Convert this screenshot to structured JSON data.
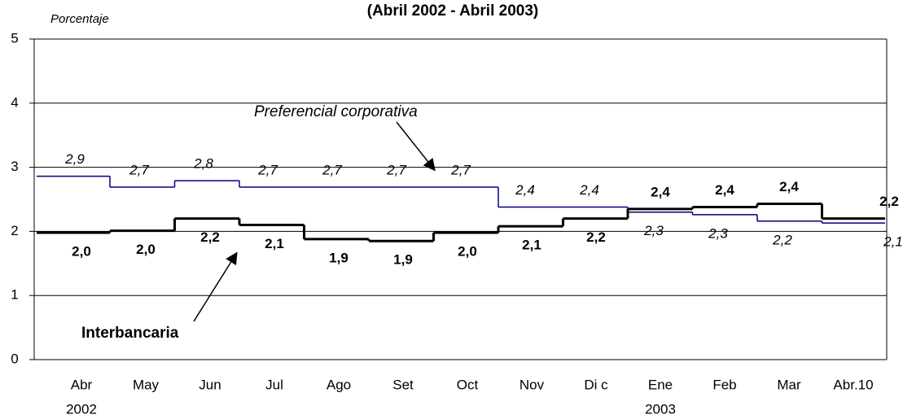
{
  "chart_data": {
    "type": "step",
    "title": "(Abril 2002 - Abril 2003)",
    "y_label": "Porcentaje",
    "categories": [
      "Abr",
      "May",
      "Jun",
      "Jul",
      "Ago",
      "Set",
      "Oct",
      "Nov",
      "Di c",
      "Ene",
      "Feb",
      "Mar",
      "Abr.10"
    ],
    "year_labels": [
      "2002",
      "2003"
    ],
    "series": [
      {
        "name": "Preferencial corporativa",
        "color": "#000080",
        "values": [
          2.86,
          2.69,
          2.79,
          2.69,
          2.69,
          2.69,
          2.69,
          2.38,
          2.38,
          2.3,
          2.26,
          2.16,
          2.13
        ],
        "value_labels": [
          "2,9",
          "2,7",
          "2,8",
          "2,7",
          "2,7",
          "2,7",
          "2,7",
          "2,4",
          "2,4",
          "2,3",
          "2,3",
          "2,2",
          "2,1"
        ]
      },
      {
        "name": "Interbancaria",
        "color": "#000000",
        "values": [
          1.98,
          2.01,
          2.2,
          2.1,
          1.88,
          1.85,
          1.98,
          2.08,
          2.2,
          2.35,
          2.38,
          2.43,
          2.2
        ],
        "value_labels": [
          "2,0",
          "2,0",
          "2,2",
          "2,1",
          "1,9",
          "1,9",
          "2,0",
          "2,1",
          "2,2",
          "2,4",
          "2,4",
          "2,4",
          "2,2"
        ]
      }
    ],
    "ylim": [
      0,
      5
    ],
    "yticks": [
      0,
      1,
      2,
      3,
      4,
      5
    ],
    "grid": true
  }
}
